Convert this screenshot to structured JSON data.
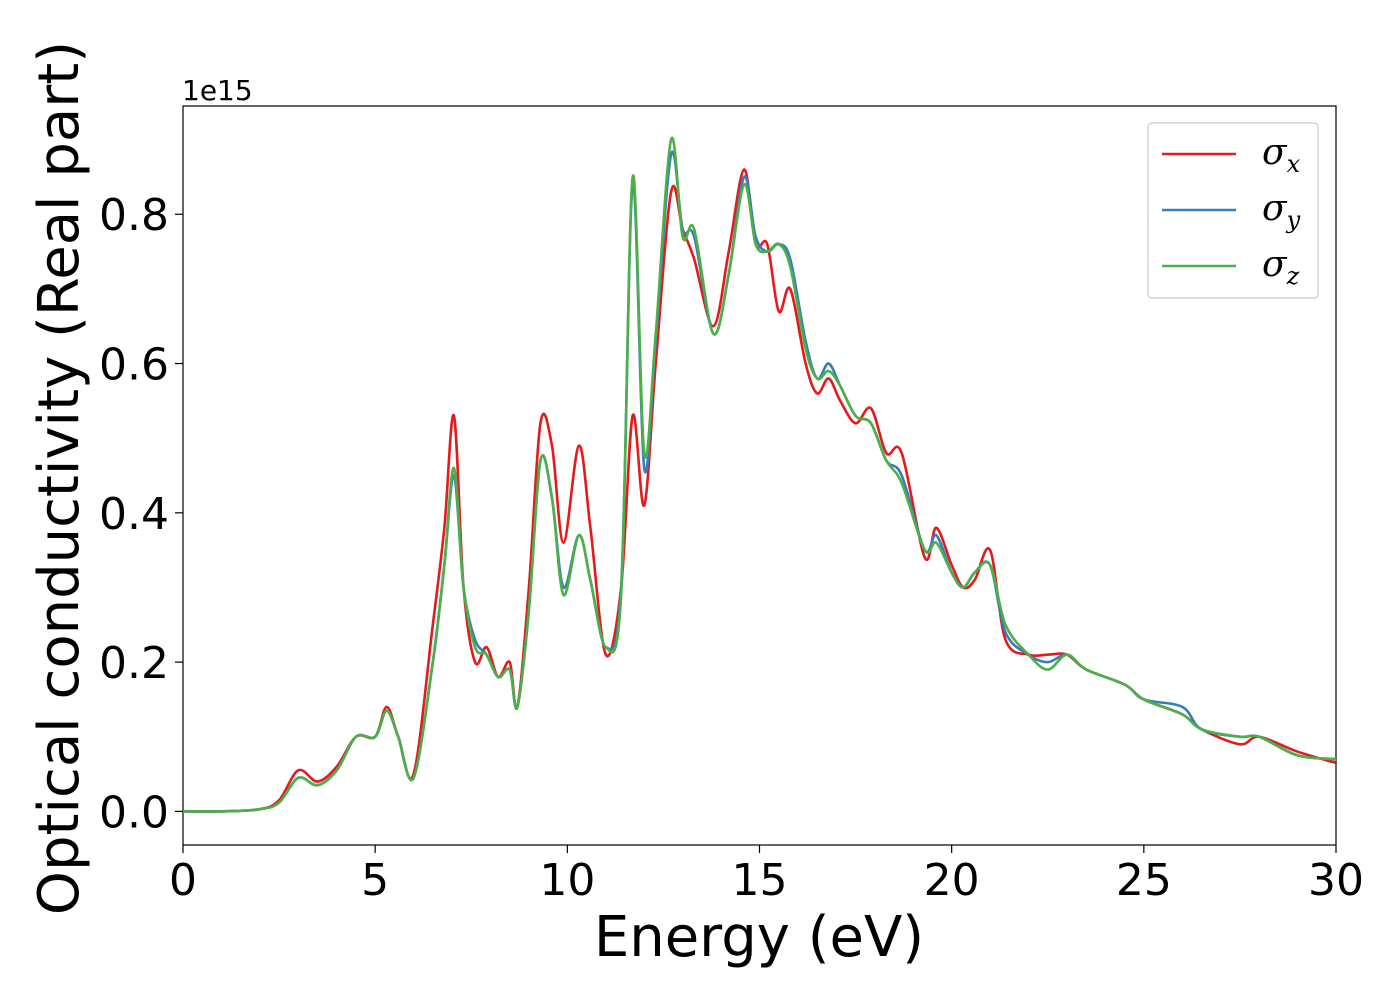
{
  "chart_data": {
    "type": "line",
    "xlabel": "Energy (eV)",
    "ylabel": "Optical conductivity (Real part)",
    "offset_text": "1e15",
    "xlim": [
      0,
      30
    ],
    "ylim": [
      -0.045,
      0.945
    ],
    "y_scale_factor": 1000000000000000.0,
    "xticks": [
      0,
      5,
      10,
      15,
      20,
      25,
      30
    ],
    "yticks": [
      0.0,
      0.2,
      0.4,
      0.6,
      0.8
    ],
    "xtick_labels": [
      "0",
      "5",
      "10",
      "15",
      "20",
      "25",
      "30"
    ],
    "ytick_labels": [
      "0.0",
      "0.2",
      "0.4",
      "0.6",
      "0.8"
    ],
    "grid": false,
    "legend_position": "top-right",
    "series": [
      {
        "name": "σx",
        "symbol": "σ",
        "subscript": "x",
        "color": "#e41a1c",
        "points": [
          [
            0,
            0
          ],
          [
            1,
            0
          ],
          [
            2,
            0.003
          ],
          [
            2.5,
            0.015
          ],
          [
            3,
            0.055
          ],
          [
            3.5,
            0.04
          ],
          [
            4,
            0.06
          ],
          [
            4.5,
            0.1
          ],
          [
            5,
            0.1
          ],
          [
            5.3,
            0.14
          ],
          [
            5.6,
            0.1
          ],
          [
            6,
            0.05
          ],
          [
            6.5,
            0.25
          ],
          [
            6.8,
            0.38
          ],
          [
            7.05,
            0.53
          ],
          [
            7.3,
            0.3
          ],
          [
            7.6,
            0.2
          ],
          [
            7.9,
            0.22
          ],
          [
            8.2,
            0.18
          ],
          [
            8.5,
            0.2
          ],
          [
            8.7,
            0.14
          ],
          [
            9,
            0.3
          ],
          [
            9.3,
            0.52
          ],
          [
            9.6,
            0.49
          ],
          [
            9.9,
            0.36
          ],
          [
            10.3,
            0.49
          ],
          [
            10.6,
            0.38
          ],
          [
            11,
            0.21
          ],
          [
            11.4,
            0.3
          ],
          [
            11.7,
            0.53
          ],
          [
            12,
            0.41
          ],
          [
            12.3,
            0.6
          ],
          [
            12.7,
            0.83
          ],
          [
            13,
            0.78
          ],
          [
            13.3,
            0.74
          ],
          [
            13.8,
            0.65
          ],
          [
            14.2,
            0.75
          ],
          [
            14.6,
            0.86
          ],
          [
            14.9,
            0.76
          ],
          [
            15.2,
            0.76
          ],
          [
            15.5,
            0.67
          ],
          [
            15.8,
            0.7
          ],
          [
            16.2,
            0.6
          ],
          [
            16.5,
            0.56
          ],
          [
            16.8,
            0.58
          ],
          [
            17.1,
            0.55
          ],
          [
            17.5,
            0.52
          ],
          [
            17.9,
            0.54
          ],
          [
            18.3,
            0.48
          ],
          [
            18.7,
            0.48
          ],
          [
            19.3,
            0.34
          ],
          [
            19.6,
            0.38
          ],
          [
            20,
            0.33
          ],
          [
            20.3,
            0.3
          ],
          [
            20.6,
            0.31
          ],
          [
            21,
            0.35
          ],
          [
            21.4,
            0.23
          ],
          [
            22,
            0.21
          ],
          [
            22.5,
            0.21
          ],
          [
            23,
            0.21
          ],
          [
            23.5,
            0.19
          ],
          [
            24.5,
            0.17
          ],
          [
            25,
            0.15
          ],
          [
            26,
            0.13
          ],
          [
            26.5,
            0.11
          ],
          [
            27.5,
            0.09
          ],
          [
            28,
            0.1
          ],
          [
            29,
            0.08
          ],
          [
            30,
            0.065
          ]
        ]
      },
      {
        "name": "σy",
        "symbol": "σ",
        "subscript": "y",
        "color": "#377eb8",
        "points": [
          [
            0,
            0
          ],
          [
            1,
            0
          ],
          [
            2,
            0.003
          ],
          [
            2.5,
            0.012
          ],
          [
            3,
            0.045
          ],
          [
            3.5,
            0.035
          ],
          [
            4,
            0.055
          ],
          [
            4.5,
            0.1
          ],
          [
            5,
            0.1
          ],
          [
            5.3,
            0.135
          ],
          [
            5.6,
            0.1
          ],
          [
            6,
            0.045
          ],
          [
            6.5,
            0.2
          ],
          [
            6.8,
            0.33
          ],
          [
            7.05,
            0.45
          ],
          [
            7.3,
            0.3
          ],
          [
            7.6,
            0.23
          ],
          [
            7.9,
            0.21
          ],
          [
            8.2,
            0.18
          ],
          [
            8.5,
            0.19
          ],
          [
            8.7,
            0.14
          ],
          [
            9,
            0.27
          ],
          [
            9.3,
            0.47
          ],
          [
            9.6,
            0.42
          ],
          [
            9.9,
            0.3
          ],
          [
            10.3,
            0.37
          ],
          [
            10.6,
            0.31
          ],
          [
            11,
            0.22
          ],
          [
            11.4,
            0.3
          ],
          [
            11.7,
            0.84
          ],
          [
            12,
            0.46
          ],
          [
            12.3,
            0.63
          ],
          [
            12.7,
            0.88
          ],
          [
            13,
            0.78
          ],
          [
            13.3,
            0.77
          ],
          [
            13.8,
            0.64
          ],
          [
            14.2,
            0.72
          ],
          [
            14.6,
            0.85
          ],
          [
            14.9,
            0.77
          ],
          [
            15.2,
            0.75
          ],
          [
            15.5,
            0.76
          ],
          [
            15.8,
            0.74
          ],
          [
            16.2,
            0.63
          ],
          [
            16.5,
            0.58
          ],
          [
            16.8,
            0.6
          ],
          [
            17.1,
            0.57
          ],
          [
            17.5,
            0.53
          ],
          [
            17.9,
            0.52
          ],
          [
            18.3,
            0.47
          ],
          [
            18.7,
            0.45
          ],
          [
            19.3,
            0.35
          ],
          [
            19.6,
            0.37
          ],
          [
            20,
            0.32
          ],
          [
            20.3,
            0.3
          ],
          [
            20.6,
            0.32
          ],
          [
            21,
            0.33
          ],
          [
            21.4,
            0.24
          ],
          [
            22,
            0.21
          ],
          [
            22.5,
            0.2
          ],
          [
            23,
            0.21
          ],
          [
            23.5,
            0.19
          ],
          [
            24.5,
            0.17
          ],
          [
            25,
            0.15
          ],
          [
            26,
            0.14
          ],
          [
            26.5,
            0.11
          ],
          [
            27.5,
            0.1
          ],
          [
            28,
            0.1
          ],
          [
            29,
            0.075
          ],
          [
            30,
            0.07
          ]
        ]
      },
      {
        "name": "σz",
        "symbol": "σ",
        "subscript": "z",
        "color": "#4daf4a",
        "points": [
          [
            0,
            0
          ],
          [
            1,
            0
          ],
          [
            2,
            0.003
          ],
          [
            2.5,
            0.012
          ],
          [
            3,
            0.045
          ],
          [
            3.5,
            0.035
          ],
          [
            4,
            0.055
          ],
          [
            4.5,
            0.1
          ],
          [
            5,
            0.1
          ],
          [
            5.3,
            0.135
          ],
          [
            5.6,
            0.1
          ],
          [
            6,
            0.045
          ],
          [
            6.5,
            0.2
          ],
          [
            6.8,
            0.33
          ],
          [
            7.05,
            0.46
          ],
          [
            7.3,
            0.3
          ],
          [
            7.6,
            0.22
          ],
          [
            7.9,
            0.21
          ],
          [
            8.2,
            0.18
          ],
          [
            8.5,
            0.19
          ],
          [
            8.7,
            0.14
          ],
          [
            9,
            0.27
          ],
          [
            9.3,
            0.47
          ],
          [
            9.6,
            0.42
          ],
          [
            9.9,
            0.29
          ],
          [
            10.3,
            0.37
          ],
          [
            10.6,
            0.31
          ],
          [
            11,
            0.22
          ],
          [
            11.4,
            0.29
          ],
          [
            11.7,
            0.85
          ],
          [
            12,
            0.48
          ],
          [
            12.3,
            0.64
          ],
          [
            12.7,
            0.9
          ],
          [
            13,
            0.77
          ],
          [
            13.3,
            0.78
          ],
          [
            13.8,
            0.64
          ],
          [
            14.2,
            0.72
          ],
          [
            14.6,
            0.84
          ],
          [
            14.9,
            0.76
          ],
          [
            15.2,
            0.75
          ],
          [
            15.5,
            0.76
          ],
          [
            15.8,
            0.73
          ],
          [
            16.2,
            0.62
          ],
          [
            16.5,
            0.58
          ],
          [
            16.8,
            0.59
          ],
          [
            17.1,
            0.57
          ],
          [
            17.5,
            0.53
          ],
          [
            17.9,
            0.52
          ],
          [
            18.3,
            0.47
          ],
          [
            18.7,
            0.44
          ],
          [
            19.3,
            0.35
          ],
          [
            19.6,
            0.36
          ],
          [
            20,
            0.32
          ],
          [
            20.3,
            0.3
          ],
          [
            20.6,
            0.32
          ],
          [
            21,
            0.33
          ],
          [
            21.4,
            0.25
          ],
          [
            22,
            0.21
          ],
          [
            22.5,
            0.19
          ],
          [
            23,
            0.21
          ],
          [
            23.5,
            0.19
          ],
          [
            24.5,
            0.17
          ],
          [
            25,
            0.15
          ],
          [
            26,
            0.13
          ],
          [
            26.5,
            0.11
          ],
          [
            27.5,
            0.1
          ],
          [
            28,
            0.1
          ],
          [
            29,
            0.075
          ],
          [
            30,
            0.07
          ]
        ]
      }
    ]
  }
}
